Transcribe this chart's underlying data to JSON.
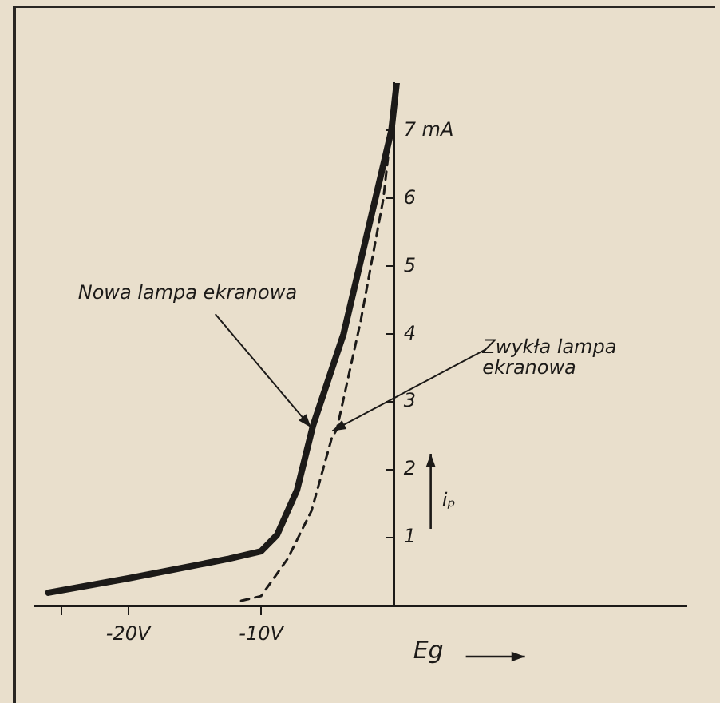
{
  "chart_data": {
    "type": "line",
    "xlabel": "Eg",
    "ylabel": "iₚ",
    "xlim": [
      -27,
      22
    ],
    "ylim": [
      0,
      7.7
    ],
    "xticks": [
      {
        "value": -25,
        "label": null
      },
      {
        "value": -20,
        "label": "-20V"
      },
      {
        "value": -10,
        "label": "-10V"
      }
    ],
    "yticks": [
      1,
      2,
      3,
      4,
      5,
      6,
      {
        "value": 7,
        "label": "7 mA"
      }
    ],
    "grid": false,
    "legend": false,
    "marker": "none",
    "series": [
      {
        "color": "#1c1a18",
        "line_style": "solid",
        "x": [
          -26,
          -20,
          -12.4,
          -10,
          -8.8,
          -7.3,
          -6.1,
          -3.8,
          -2.6,
          -0.2,
          0.2
        ],
        "values": [
          0.19,
          0.4,
          0.69,
          0.8,
          1.04,
          1.7,
          2.65,
          4,
          5,
          7,
          7.7
        ]
      },
      {
        "color": "#1c1a18",
        "line_style": "dashed",
        "x": [
          -11.5,
          -10,
          -8,
          -6.2,
          -4.7,
          -4.3,
          -2.5,
          -0.8,
          -0.4
        ],
        "values": [
          0.07,
          0.14,
          0.69,
          1.4,
          2.46,
          2.6,
          4.2,
          6,
          6.7
        ]
      }
    ],
    "annotations": [
      {
        "text": "Nowa lampa ekranowa",
        "x": -6.0,
        "y": 2.6
      },
      {
        "text": "Zwykła lampa ekranowa",
        "x": -4.4,
        "y": 2.55
      }
    ]
  }
}
